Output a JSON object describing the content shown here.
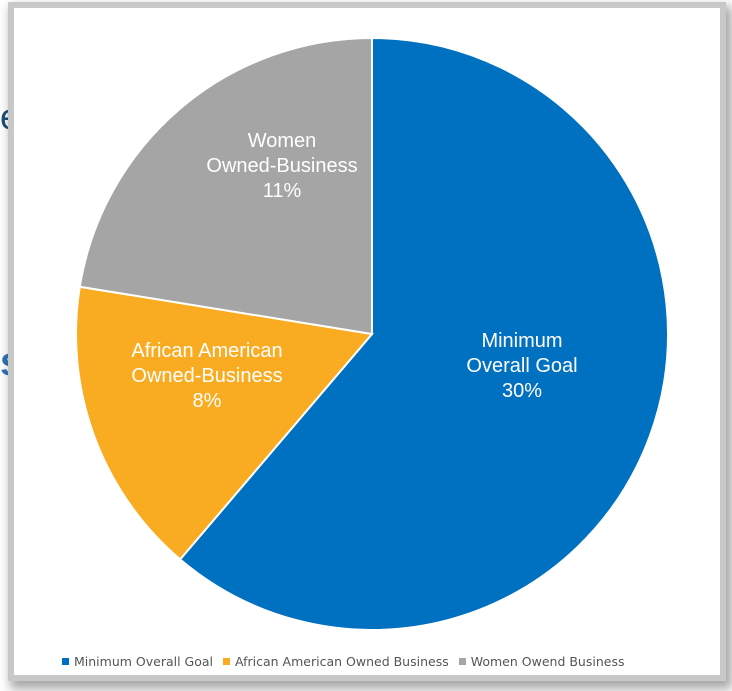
{
  "background": {
    "text_1": "ess",
    "text_2": "s"
  },
  "colors": {
    "minimum_overall_goal": "#0070c0",
    "african_american": "#f9ab21",
    "women": "#a5a5a5"
  },
  "chart_data": {
    "type": "pie",
    "title": "",
    "slices": [
      {
        "name": "Minimum Overall Goal",
        "label_lines": [
          "Minimum",
          "Overall Goal",
          "30%"
        ],
        "value": 30,
        "color": "#0070c0"
      },
      {
        "name": "African American Owned Business",
        "label_lines": [
          "African American",
          "Owned-Business",
          "8%"
        ],
        "value": 8,
        "color": "#f9ab21"
      },
      {
        "name": "Women Owend Business",
        "label_lines": [
          "Women",
          "Owned-Business",
          "11%"
        ],
        "value": 11,
        "color": "#a5a5a5"
      }
    ],
    "legend": {
      "placement": "bottom",
      "entries": [
        "Minimum Overall Goal",
        "African American Owned Business",
        "Women Owend Business"
      ]
    }
  }
}
